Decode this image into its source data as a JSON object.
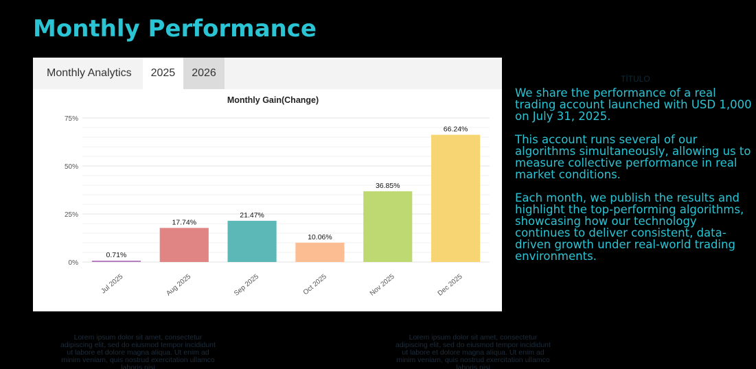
{
  "page": {
    "title": "Monthly Performance"
  },
  "card": {
    "heading": "Monthly Analytics",
    "tabs": [
      {
        "label": "2025",
        "active": true
      },
      {
        "label": "2026",
        "active": false
      }
    ]
  },
  "chart_data": {
    "type": "bar",
    "title": "Monthly Gain(Change)",
    "xlabel": "",
    "ylabel": "",
    "categories": [
      "Jul 2025",
      "Aug 2025",
      "Sep 2025",
      "Oct 2025",
      "Nov 2025",
      "Dec 2025"
    ],
    "values": [
      0.71,
      17.74,
      21.47,
      10.06,
      36.85,
      66.24
    ],
    "value_labels": [
      "0.71%",
      "17.74%",
      "21.47%",
      "10.06%",
      "36.85%",
      "66.24%"
    ],
    "colors": [
      "#b57fc0",
      "#e18584",
      "#5bb8b7",
      "#fdbd93",
      "#bfd972",
      "#f7d573"
    ],
    "ylim": [
      0,
      75
    ],
    "yticks": [
      0,
      25,
      50,
      75
    ],
    "ytick_labels": [
      "0%",
      "25%",
      "50%",
      "75%"
    ],
    "grid": true
  },
  "side": {
    "label": "TÍTULO",
    "paragraphs": [
      "We share the performance of a real trading account launched with USD 1,000 on July 31, 2025.",
      " This account runs several of our algorithms simultaneously, allowing us to measure collective performance in real market conditions.",
      " Each month, we publish the results and highlight the top-performing algorithms, showcasing how our technology continues to deliver consistent, data-driven growth under real-world trading environments."
    ]
  },
  "footer": {
    "lorem_left": "Lorem ipsum dolor sit amet, consectetur adipiscing elit, sed do eiusmod tempor incididunt ut labore et dolore magna aliqua. Ut enim ad minim veniam, quis nostrud exercitation ullamco laboris nisi",
    "lorem_right": "Lorem ipsum dolor sit amet, consectetur adipiscing elit, sed do eiusmod tempor incididunt ut labore et dolore magna aliqua. Ut enim ad minim veniam, quis nostrud exercitation ullamco laboris nisi"
  },
  "colors": {
    "accent": "#2bc4d4",
    "background": "#000000"
  }
}
